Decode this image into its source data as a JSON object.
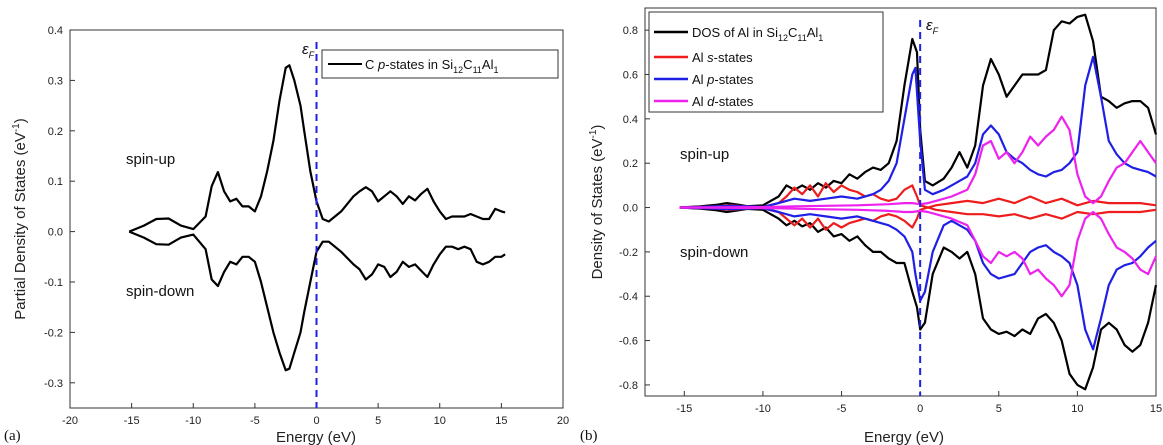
{
  "chart_data": [
    {
      "type": "line",
      "panel_label": "(a)",
      "xlabel": "Energy (eV)",
      "ylabel": "Partial Density of States (eV",
      "ylabel_sup": "-1",
      "ylabel_close": ")",
      "xlim": [
        -20,
        20
      ],
      "ylim": [
        -0.35,
        0.4
      ],
      "xticks": [
        -20,
        -15,
        -10,
        -5,
        0,
        5,
        10,
        15,
        20
      ],
      "yticks": [
        -0.3,
        -0.2,
        -0.1,
        0.0,
        0.1,
        0.2,
        0.3,
        0.4
      ],
      "xtick_labels": [
        "-20",
        "-15",
        "-10",
        "-5",
        "0",
        "5",
        "10",
        "15",
        "20"
      ],
      "ytick_labels": [
        "-0.3",
        "-0.2",
        "-0.1",
        "0.0",
        "0.1",
        "0.2",
        "0.3",
        "0.4"
      ],
      "fermi_label": "ε",
      "fermi_sub": "F",
      "fermi_energy": 0,
      "annotations": {
        "spin_up": "spin-up",
        "spin_down": "spin-down"
      },
      "legend_position": "top-right",
      "legend": [
        {
          "prefix": "C ",
          "italic": "p",
          "mid": "-states in Si",
          "s1": "12",
          "c": "C",
          "s2": "11",
          "al": "Al",
          "s3": "1",
          "color": "#000000"
        }
      ],
      "series": [
        {
          "color": "#000000",
          "x": [
            -15.2,
            -14,
            -13,
            -12,
            -11,
            -10,
            -9,
            -8.5,
            -8,
            -7.5,
            -7,
            -6.5,
            -6,
            -5.5,
            -5,
            -4.5,
            -4,
            -3.5,
            -3,
            -2.5,
            -2.2,
            -1.8,
            -1.3,
            -1,
            -0.5,
            0,
            0.5,
            1,
            2,
            3,
            3.5,
            4,
            4.5,
            5,
            5.5,
            6,
            6.5,
            7,
            7.5,
            8,
            8.5,
            9,
            9.5,
            10,
            10.5,
            11,
            11.5,
            12,
            12.5,
            13,
            13.5,
            14,
            14.5,
            15,
            15.3
          ],
          "up": [
            0,
            0.012,
            0.025,
            0.026,
            0.012,
            0.005,
            0.03,
            0.09,
            0.118,
            0.08,
            0.06,
            0.065,
            0.05,
            0.05,
            0.04,
            0.07,
            0.12,
            0.18,
            0.26,
            0.325,
            0.33,
            0.3,
            0.25,
            0.2,
            0.12,
            0.06,
            0.025,
            0.02,
            0.04,
            0.07,
            0.08,
            0.088,
            0.08,
            0.06,
            0.07,
            0.08,
            0.07,
            0.055,
            0.07,
            0.062,
            0.075,
            0.085,
            0.06,
            0.04,
            0.025,
            0.03,
            0.03,
            0.03,
            0.035,
            0.03,
            0.025,
            0.025,
            0.045,
            0.04,
            0.038
          ],
          "down": [
            0,
            -0.012,
            -0.025,
            -0.026,
            -0.012,
            -0.006,
            -0.035,
            -0.095,
            -0.108,
            -0.08,
            -0.06,
            -0.065,
            -0.05,
            -0.05,
            -0.06,
            -0.1,
            -0.15,
            -0.2,
            -0.24,
            -0.275,
            -0.272,
            -0.24,
            -0.2,
            -0.16,
            -0.1,
            -0.04,
            -0.02,
            -0.02,
            -0.04,
            -0.065,
            -0.075,
            -0.095,
            -0.085,
            -0.065,
            -0.07,
            -0.09,
            -0.08,
            -0.06,
            -0.07,
            -0.065,
            -0.078,
            -0.09,
            -0.065,
            -0.045,
            -0.03,
            -0.03,
            -0.035,
            -0.03,
            -0.035,
            -0.06,
            -0.065,
            -0.06,
            -0.05,
            -0.05,
            -0.045
          ]
        }
      ]
    },
    {
      "type": "line",
      "panel_label": "(b)",
      "xlabel": "Energy (eV)",
      "ylabel": "Density of States (eV",
      "ylabel_sup": "-1",
      "ylabel_close": ")",
      "xlim": [
        -17.5,
        15
      ],
      "ylim": [
        -0.85,
        0.9
      ],
      "xticks": [
        -15,
        -10,
        -5,
        0,
        5,
        10,
        15
      ],
      "yticks": [
        -0.8,
        -0.6,
        -0.4,
        -0.2,
        0.0,
        0.2,
        0.4,
        0.6,
        0.8
      ],
      "xtick_labels": [
        "-15",
        "-10",
        "-5",
        "0",
        "5",
        "10",
        "15"
      ],
      "ytick_labels": [
        "-0.8",
        "-0.6",
        "-0.4",
        "-0.2",
        "0.0",
        "0.2",
        "0.4",
        "0.6",
        "0.8"
      ],
      "fermi_label": "ε",
      "fermi_sub": "F",
      "fermi_energy": 0,
      "annotations": {
        "spin_up": "spin-up",
        "spin_down": "spin-down"
      },
      "legend_position": "top-left",
      "legend": [
        {
          "prefix": "DOS of Al in Si",
          "s1": "12",
          "c": "C",
          "s2": "11",
          "al": "Al",
          "s3": "1",
          "color": "#000000"
        },
        {
          "prefix": "Al ",
          "italic": "s",
          "mid": "-states",
          "color": "#ee1c1c"
        },
        {
          "prefix": "Al ",
          "italic": "p",
          "mid": "-states",
          "color": "#1f1fe6"
        },
        {
          "prefix": "Al ",
          "italic": "d",
          "mid": "-states",
          "color": "#ee22ee"
        }
      ],
      "series": [
        {
          "color": "#000000",
          "x": [
            -15.3,
            -14,
            -13,
            -12.3,
            -11.5,
            -11,
            -10,
            -9,
            -8.5,
            -8,
            -7.5,
            -7,
            -6.5,
            -6,
            -5.5,
            -5,
            -4.5,
            -4,
            -3.5,
            -3,
            -2.5,
            -2,
            -1.5,
            -1,
            -0.5,
            -0.2,
            0,
            0.3,
            0.8,
            1.5,
            2,
            2.5,
            3,
            3.5,
            4,
            4.5,
            5,
            5.5,
            6,
            6.5,
            7,
            7.5,
            8,
            8.5,
            9,
            9.5,
            10,
            10.5,
            11,
            11.5,
            12,
            12.5,
            13,
            13.5,
            14,
            14.5,
            15
          ],
          "up": [
            0,
            0.005,
            0.012,
            0.02,
            0.012,
            0.006,
            0.01,
            0.05,
            0.1,
            0.08,
            0.1,
            0.08,
            0.11,
            0.09,
            0.12,
            0.11,
            0.15,
            0.13,
            0.16,
            0.18,
            0.17,
            0.2,
            0.3,
            0.55,
            0.76,
            0.7,
            0.35,
            0.12,
            0.1,
            0.13,
            0.18,
            0.25,
            0.18,
            0.28,
            0.55,
            0.67,
            0.6,
            0.5,
            0.55,
            0.6,
            0.6,
            0.6,
            0.62,
            0.8,
            0.84,
            0.83,
            0.86,
            0.87,
            0.75,
            0.5,
            0.48,
            0.45,
            0.47,
            0.48,
            0.48,
            0.45,
            0.33
          ],
          "down": [
            0,
            -0.005,
            -0.012,
            -0.02,
            -0.012,
            -0.006,
            -0.01,
            -0.05,
            -0.08,
            -0.06,
            -0.085,
            -0.07,
            -0.11,
            -0.09,
            -0.13,
            -0.12,
            -0.15,
            -0.13,
            -0.17,
            -0.2,
            -0.2,
            -0.23,
            -0.25,
            -0.25,
            -0.38,
            -0.45,
            -0.55,
            -0.52,
            -0.3,
            -0.18,
            -0.2,
            -0.23,
            -0.2,
            -0.3,
            -0.5,
            -0.55,
            -0.57,
            -0.56,
            -0.58,
            -0.55,
            -0.57,
            -0.5,
            -0.48,
            -0.52,
            -0.6,
            -0.75,
            -0.8,
            -0.82,
            -0.72,
            -0.55,
            -0.52,
            -0.55,
            -0.62,
            -0.65,
            -0.62,
            -0.52,
            -0.35
          ]
        },
        {
          "color": "#ee1c1c",
          "x": [
            -15.3,
            -14,
            -13,
            -12,
            -11,
            -10,
            -9,
            -8.5,
            -8,
            -7.5,
            -7,
            -6.5,
            -6,
            -5.5,
            -5,
            -4.5,
            -4,
            -3.5,
            -3,
            -2.5,
            -2,
            -1.5,
            -1,
            -0.5,
            -0.2,
            0,
            0.5,
            1,
            2,
            3,
            4,
            5,
            6,
            7,
            8,
            9,
            10,
            11,
            12,
            13,
            14,
            15
          ],
          "up": [
            0,
            0.003,
            0.005,
            0.01,
            0.005,
            0.003,
            0.02,
            0.05,
            0.09,
            0.06,
            0.1,
            0.05,
            0.11,
            0.07,
            0.1,
            0.08,
            0.07,
            0.05,
            0.06,
            0.04,
            0.03,
            0.04,
            0.08,
            0.1,
            0.05,
            0.01,
            0.0,
            0.01,
            0.02,
            0.03,
            0.02,
            0.04,
            0.02,
            0.05,
            0.02,
            0.04,
            0.01,
            0.03,
            0.02,
            0.02,
            0.02,
            0.01
          ],
          "down": [
            0,
            -0.003,
            -0.005,
            -0.01,
            -0.005,
            -0.003,
            -0.02,
            -0.05,
            -0.08,
            -0.05,
            -0.09,
            -0.05,
            -0.1,
            -0.07,
            -0.09,
            -0.07,
            -0.06,
            -0.05,
            -0.06,
            -0.04,
            -0.03,
            -0.04,
            -0.06,
            -0.09,
            -0.05,
            -0.01,
            0.0,
            -0.01,
            -0.02,
            -0.03,
            -0.03,
            -0.04,
            -0.03,
            -0.05,
            -0.03,
            -0.05,
            -0.02,
            -0.03,
            -0.02,
            -0.02,
            -0.02,
            -0.01
          ]
        },
        {
          "color": "#1f1fe6",
          "x": [
            -15.3,
            -14,
            -13,
            -12,
            -11,
            -10,
            -9,
            -8,
            -7,
            -6,
            -5,
            -4,
            -3,
            -2.5,
            -2,
            -1.5,
            -1,
            -0.5,
            -0.3,
            0,
            0.3,
            0.8,
            1.5,
            2,
            2.5,
            3,
            3.5,
            4,
            4.5,
            5,
            5.5,
            6,
            6.5,
            7,
            7.5,
            8,
            8.5,
            9,
            9.5,
            10,
            10.5,
            11,
            11.5,
            12,
            12.5,
            13,
            13.5,
            14,
            14.5,
            15
          ],
          "up": [
            0,
            0.003,
            0.005,
            0.008,
            0.005,
            0.003,
            0.02,
            0.04,
            0.03,
            0.04,
            0.05,
            0.04,
            0.06,
            0.08,
            0.12,
            0.2,
            0.4,
            0.6,
            0.63,
            0.3,
            0.08,
            0.06,
            0.08,
            0.1,
            0.12,
            0.14,
            0.2,
            0.33,
            0.37,
            0.33,
            0.25,
            0.22,
            0.2,
            0.17,
            0.15,
            0.14,
            0.16,
            0.17,
            0.2,
            0.25,
            0.55,
            0.68,
            0.5,
            0.3,
            0.24,
            0.2,
            0.18,
            0.17,
            0.16,
            0.14
          ],
          "down": [
            0,
            -0.003,
            -0.005,
            -0.008,
            -0.005,
            -0.003,
            -0.02,
            -0.04,
            -0.03,
            -0.04,
            -0.05,
            -0.04,
            -0.06,
            -0.07,
            -0.08,
            -0.1,
            -0.13,
            -0.2,
            -0.3,
            -0.42,
            -0.38,
            -0.2,
            -0.08,
            -0.06,
            -0.08,
            -0.1,
            -0.15,
            -0.25,
            -0.3,
            -0.32,
            -0.31,
            -0.3,
            -0.25,
            -0.2,
            -0.18,
            -0.17,
            -0.2,
            -0.22,
            -0.25,
            -0.35,
            -0.55,
            -0.64,
            -0.5,
            -0.35,
            -0.28,
            -0.26,
            -0.25,
            -0.22,
            -0.18,
            -0.15
          ]
        },
        {
          "color": "#ee22ee",
          "x": [
            -15.3,
            -10,
            -8,
            -6,
            -4,
            -2,
            -1,
            -0.5,
            0,
            0.5,
            1,
            2,
            3,
            3.5,
            4,
            4.5,
            5,
            5.5,
            6,
            6.5,
            7,
            7.5,
            8,
            8.5,
            9,
            9.5,
            10,
            10.5,
            11,
            11.5,
            12,
            12.5,
            13,
            13.5,
            14,
            14.5,
            15
          ],
          "up": [
            0,
            0.002,
            0.005,
            0.008,
            0.01,
            0.015,
            0.02,
            0.02,
            0.015,
            0.02,
            0.03,
            0.05,
            0.08,
            0.15,
            0.28,
            0.3,
            0.22,
            0.25,
            0.2,
            0.25,
            0.32,
            0.28,
            0.32,
            0.35,
            0.41,
            0.35,
            0.15,
            0.05,
            0.02,
            0.05,
            0.12,
            0.18,
            0.2,
            0.25,
            0.3,
            0.25,
            0.2
          ],
          "down": [
            0,
            -0.002,
            -0.005,
            -0.008,
            -0.01,
            -0.015,
            -0.02,
            -0.02,
            -0.015,
            -0.02,
            -0.03,
            -0.05,
            -0.08,
            -0.15,
            -0.22,
            -0.25,
            -0.2,
            -0.22,
            -0.2,
            -0.23,
            -0.3,
            -0.28,
            -0.32,
            -0.35,
            -0.4,
            -0.35,
            -0.15,
            -0.05,
            -0.02,
            -0.05,
            -0.12,
            -0.18,
            -0.2,
            -0.23,
            -0.28,
            -0.3,
            -0.22
          ]
        }
      ]
    }
  ]
}
